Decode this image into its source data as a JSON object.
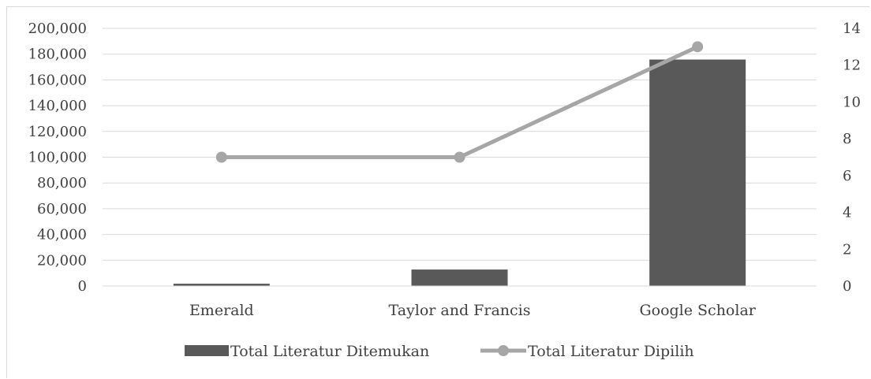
{
  "chart_data": {
    "type": "bar",
    "categories": [
      "Emerald",
      "Taylor and Francis",
      "Google Scholar"
    ],
    "series": [
      {
        "name": "Total Literatur Ditemukan",
        "type": "bar",
        "axis": "left",
        "color": "#595959",
        "values": [
          1800,
          12800,
          175800
        ]
      },
      {
        "name": "Total Literatur Dipilih",
        "type": "line",
        "axis": "right",
        "color": "#a6a6a6",
        "values": [
          7,
          7,
          13
        ]
      }
    ],
    "y_left": {
      "lim": [
        0,
        200000
      ],
      "ticks": [
        0,
        20000,
        40000,
        60000,
        80000,
        100000,
        120000,
        140000,
        160000,
        180000,
        200000
      ],
      "tick_labels": [
        "0",
        "20,000",
        "40,000",
        "60,000",
        "80,000",
        "100,000",
        "120,000",
        "140,000",
        "160,000",
        "180,000",
        "200,000"
      ]
    },
    "y_right": {
      "lim": [
        0,
        14
      ],
      "ticks": [
        0,
        2,
        4,
        6,
        8,
        10,
        12,
        14
      ],
      "tick_labels": [
        "0",
        "2",
        "4",
        "6",
        "8",
        "10",
        "12",
        "14"
      ]
    },
    "grid": true,
    "legend_position": "bottom"
  }
}
